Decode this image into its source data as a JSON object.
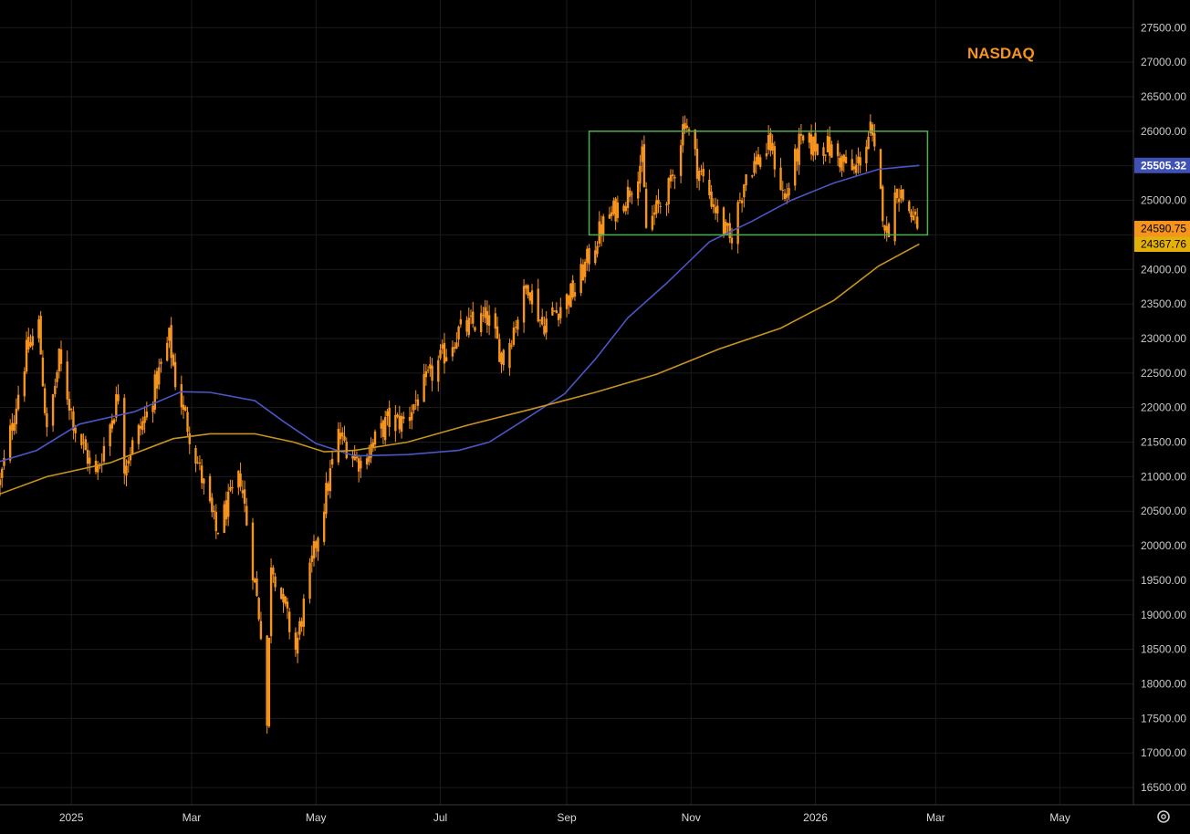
{
  "chart_data": {
    "type": "candlestick",
    "title": "NASDAQ",
    "xlabel": "",
    "ylabel": "",
    "ylim": [
      16250,
      27900
    ],
    "y_ticks": [
      16500,
      17000,
      17500,
      18000,
      18500,
      19000,
      19500,
      20000,
      20500,
      21000,
      21500,
      22000,
      22500,
      23000,
      23500,
      24000,
      24500,
      25000,
      25500,
      26000,
      26500,
      27000,
      27500
    ],
    "y_tick_labels": [
      "16500.00",
      "17000.00",
      "17500.00",
      "18000.00",
      "18500.00",
      "19000.00",
      "19500.00",
      "20000.00",
      "20500.00",
      "21000.00",
      "21500.00",
      "22000.00",
      "22500.00",
      "23000.00",
      "23500.00",
      "24000.00",
      "24500.00",
      "25000.00",
      "25500.00",
      "26000.00",
      "26500.00",
      "27000.00",
      "27500.00"
    ],
    "x_range": [
      "2024-11-27",
      "2026-06-06"
    ],
    "x_ticks": [
      {
        "label": "2025",
        "date": "2025-01-01"
      },
      {
        "label": "Mar",
        "date": "2025-03-01"
      },
      {
        "label": "May",
        "date": "2025-05-01"
      },
      {
        "label": "Jul",
        "date": "2025-07-01"
      },
      {
        "label": "Sep",
        "date": "2025-09-01"
      },
      {
        "label": "Nov",
        "date": "2025-11-01"
      },
      {
        "label": "2026",
        "date": "2026-01-01"
      },
      {
        "label": "Mar",
        "date": "2026-03-01"
      },
      {
        "label": "May",
        "date": "2026-05-01"
      }
    ],
    "grid": true,
    "colors": {
      "candle": "#f7941d",
      "ma_fast": "#4a56c8",
      "ma_slow": "#c9931e",
      "box": "#4caf50",
      "title": "#f7941d",
      "badge_fast_bg": "#3f51b5",
      "badge_price_bg": "#f7941d",
      "badge_slow_bg": "#e3b109"
    },
    "price_anchors": [
      [
        "2024-11-27",
        20900
      ],
      [
        "2024-12-10",
        22800
      ],
      [
        "2024-12-16",
        23200
      ],
      [
        "2024-12-20",
        21600
      ],
      [
        "2024-12-26",
        22700
      ],
      [
        "2025-01-03",
        21700
      ],
      [
        "2025-01-13",
        21000
      ],
      [
        "2025-01-24",
        22200
      ],
      [
        "2025-01-27",
        21200
      ],
      [
        "2025-02-07",
        21900
      ],
      [
        "2025-02-18",
        23000
      ],
      [
        "2025-02-21",
        22400
      ],
      [
        "2025-03-04",
        21200
      ],
      [
        "2025-03-13",
        20200
      ],
      [
        "2025-03-25",
        21000
      ],
      [
        "2025-04-04",
        18800
      ],
      [
        "2025-04-07",
        17400
      ],
      [
        "2025-04-09",
        19800
      ],
      [
        "2025-04-21",
        18500
      ],
      [
        "2025-05-02",
        20200
      ],
      [
        "2025-05-12",
        21600
      ],
      [
        "2025-05-23",
        21200
      ],
      [
        "2025-06-05",
        21800
      ],
      [
        "2025-06-13",
        21800
      ],
      [
        "2025-06-27",
        22500
      ],
      [
        "2025-07-10",
        23100
      ],
      [
        "2025-07-24",
        23300
      ],
      [
        "2025-08-01",
        22700
      ],
      [
        "2025-08-13",
        23800
      ],
      [
        "2025-08-20",
        23200
      ],
      [
        "2025-09-05",
        23700
      ],
      [
        "2025-09-18",
        24600
      ],
      [
        "2025-10-01",
        25100
      ],
      [
        "2025-10-08",
        25600
      ],
      [
        "2025-10-10",
        24600
      ],
      [
        "2025-10-22",
        25200
      ],
      [
        "2025-10-29",
        26200
      ],
      [
        "2025-11-04",
        25500
      ],
      [
        "2025-11-20",
        24400
      ],
      [
        "2025-11-28",
        25400
      ],
      [
        "2025-12-10",
        25800
      ],
      [
        "2025-12-17",
        25000
      ],
      [
        "2025-12-24",
        25800
      ],
      [
        "2026-01-06",
        25800
      ],
      [
        "2026-01-20",
        25400
      ],
      [
        "2026-01-28",
        26000
      ],
      [
        "2026-02-05",
        24500
      ],
      [
        "2026-02-10",
        25200
      ],
      [
        "2026-02-17",
        24800
      ],
      [
        "2026-02-20",
        24590.75
      ]
    ],
    "ma_fast": {
      "values": [
        [
          "2024-11-27",
          21220
        ],
        [
          "2024-12-15",
          21380
        ],
        [
          "2025-01-05",
          21760
        ],
        [
          "2025-02-01",
          21940
        ],
        [
          "2025-02-24",
          22230
        ],
        [
          "2025-03-10",
          22220
        ],
        [
          "2025-04-01",
          22100
        ],
        [
          "2025-04-15",
          21800
        ],
        [
          "2025-05-01",
          21480
        ],
        [
          "2025-05-20",
          21300
        ],
        [
          "2025-06-15",
          21320
        ],
        [
          "2025-07-10",
          21380
        ],
        [
          "2025-07-25",
          21500
        ],
        [
          "2025-08-10",
          21800
        ],
        [
          "2025-08-31",
          22200
        ],
        [
          "2025-09-15",
          22700
        ],
        [
          "2025-10-01",
          23300
        ],
        [
          "2025-10-20",
          23800
        ],
        [
          "2025-11-10",
          24400
        ],
        [
          "2025-12-01",
          24700
        ],
        [
          "2025-12-20",
          25000
        ],
        [
          "2026-01-10",
          25250
        ],
        [
          "2026-02-01",
          25450
        ],
        [
          "2026-02-21",
          25505.32
        ]
      ],
      "label": "25505.32"
    },
    "ma_slow": {
      "values": [
        [
          "2024-11-27",
          20750
        ],
        [
          "2024-12-20",
          21000
        ],
        [
          "2025-01-20",
          21200
        ],
        [
          "2025-02-20",
          21550
        ],
        [
          "2025-03-10",
          21620
        ],
        [
          "2025-04-01",
          21620
        ],
        [
          "2025-04-20",
          21500
        ],
        [
          "2025-05-05",
          21360
        ],
        [
          "2025-05-20",
          21380
        ],
        [
          "2025-06-15",
          21500
        ],
        [
          "2025-07-15",
          21750
        ],
        [
          "2025-08-15",
          21980
        ],
        [
          "2025-09-15",
          22220
        ],
        [
          "2025-10-15",
          22480
        ],
        [
          "2025-11-15",
          22850
        ],
        [
          "2025-12-15",
          23150
        ],
        [
          "2026-01-10",
          23550
        ],
        [
          "2026-02-01",
          24050
        ],
        [
          "2026-02-21",
          24367.76
        ]
      ],
      "label": "24367.76"
    },
    "last_price": {
      "value": 24590.75,
      "label": "24590.75"
    },
    "annotations": [
      {
        "type": "rectangle",
        "x0": "2025-09-12",
        "x1": "2026-02-25",
        "y0": 24500,
        "y1": 26000
      }
    ]
  }
}
